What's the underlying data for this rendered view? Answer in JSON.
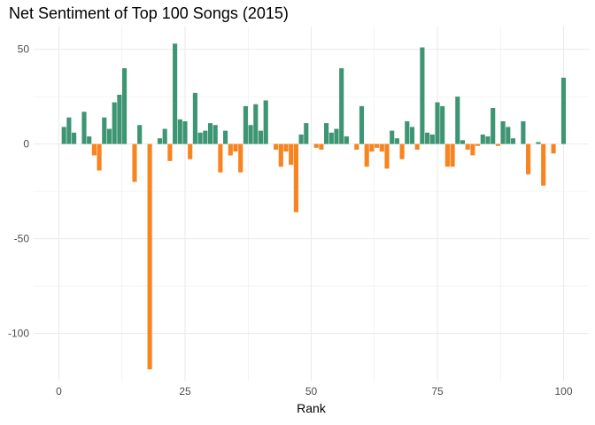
{
  "chart_data": {
    "type": "bar",
    "title": "Net Sentiment of Top 100 Songs (2015)",
    "xlabel": "Rank",
    "ylabel": "",
    "xlim": [
      -5,
      105
    ],
    "ylim": [
      -125,
      62
    ],
    "x_ticks": [
      0,
      25,
      50,
      75,
      100
    ],
    "y_ticks": [
      50,
      0,
      -50,
      -100
    ],
    "grid": true,
    "legend": "none",
    "colors": {
      "positive": "#3e9573",
      "negative": "#f7841f",
      "grid": "#ebebeb"
    },
    "x": [
      1,
      2,
      3,
      4,
      5,
      6,
      7,
      8,
      9,
      10,
      11,
      12,
      13,
      14,
      15,
      16,
      17,
      18,
      19,
      20,
      21,
      22,
      23,
      24,
      25,
      26,
      27,
      28,
      29,
      30,
      31,
      32,
      33,
      34,
      35,
      36,
      37,
      38,
      39,
      40,
      41,
      42,
      43,
      44,
      45,
      46,
      47,
      48,
      49,
      50,
      51,
      52,
      53,
      54,
      55,
      56,
      57,
      58,
      59,
      60,
      61,
      62,
      63,
      64,
      65,
      66,
      67,
      68,
      69,
      70,
      71,
      72,
      73,
      74,
      75,
      76,
      77,
      78,
      79,
      80,
      81,
      82,
      83,
      84,
      85,
      86,
      87,
      88,
      89,
      90,
      91,
      92,
      93,
      94,
      95,
      96,
      97,
      98,
      99,
      100
    ],
    "values": [
      9,
      14,
      6,
      0,
      17,
      4,
      -6,
      -14,
      14,
      8,
      22,
      26,
      40,
      0,
      -20,
      10,
      0,
      -119,
      0,
      3,
      8,
      -9,
      53,
      13,
      12,
      -8,
      27,
      6,
      7,
      11,
      10,
      -15,
      7,
      -6,
      -4,
      -15,
      20,
      10,
      21,
      7,
      23,
      0,
      -3,
      -12,
      -4,
      -11,
      -36,
      5,
      11,
      0,
      -2,
      -3,
      11,
      6,
      8,
      40,
      4,
      0,
      -3,
      20,
      -12,
      -4,
      -2,
      -4,
      -13,
      7,
      3,
      -8,
      12,
      9,
      -3,
      51,
      6,
      5,
      22,
      20,
      -12,
      -12,
      25,
      2,
      -3,
      -6,
      -1,
      5,
      4,
      19,
      -1,
      12,
      9,
      3,
      0,
      12,
      -16,
      0,
      1,
      -22,
      0,
      -5,
      0,
      35
    ]
  }
}
